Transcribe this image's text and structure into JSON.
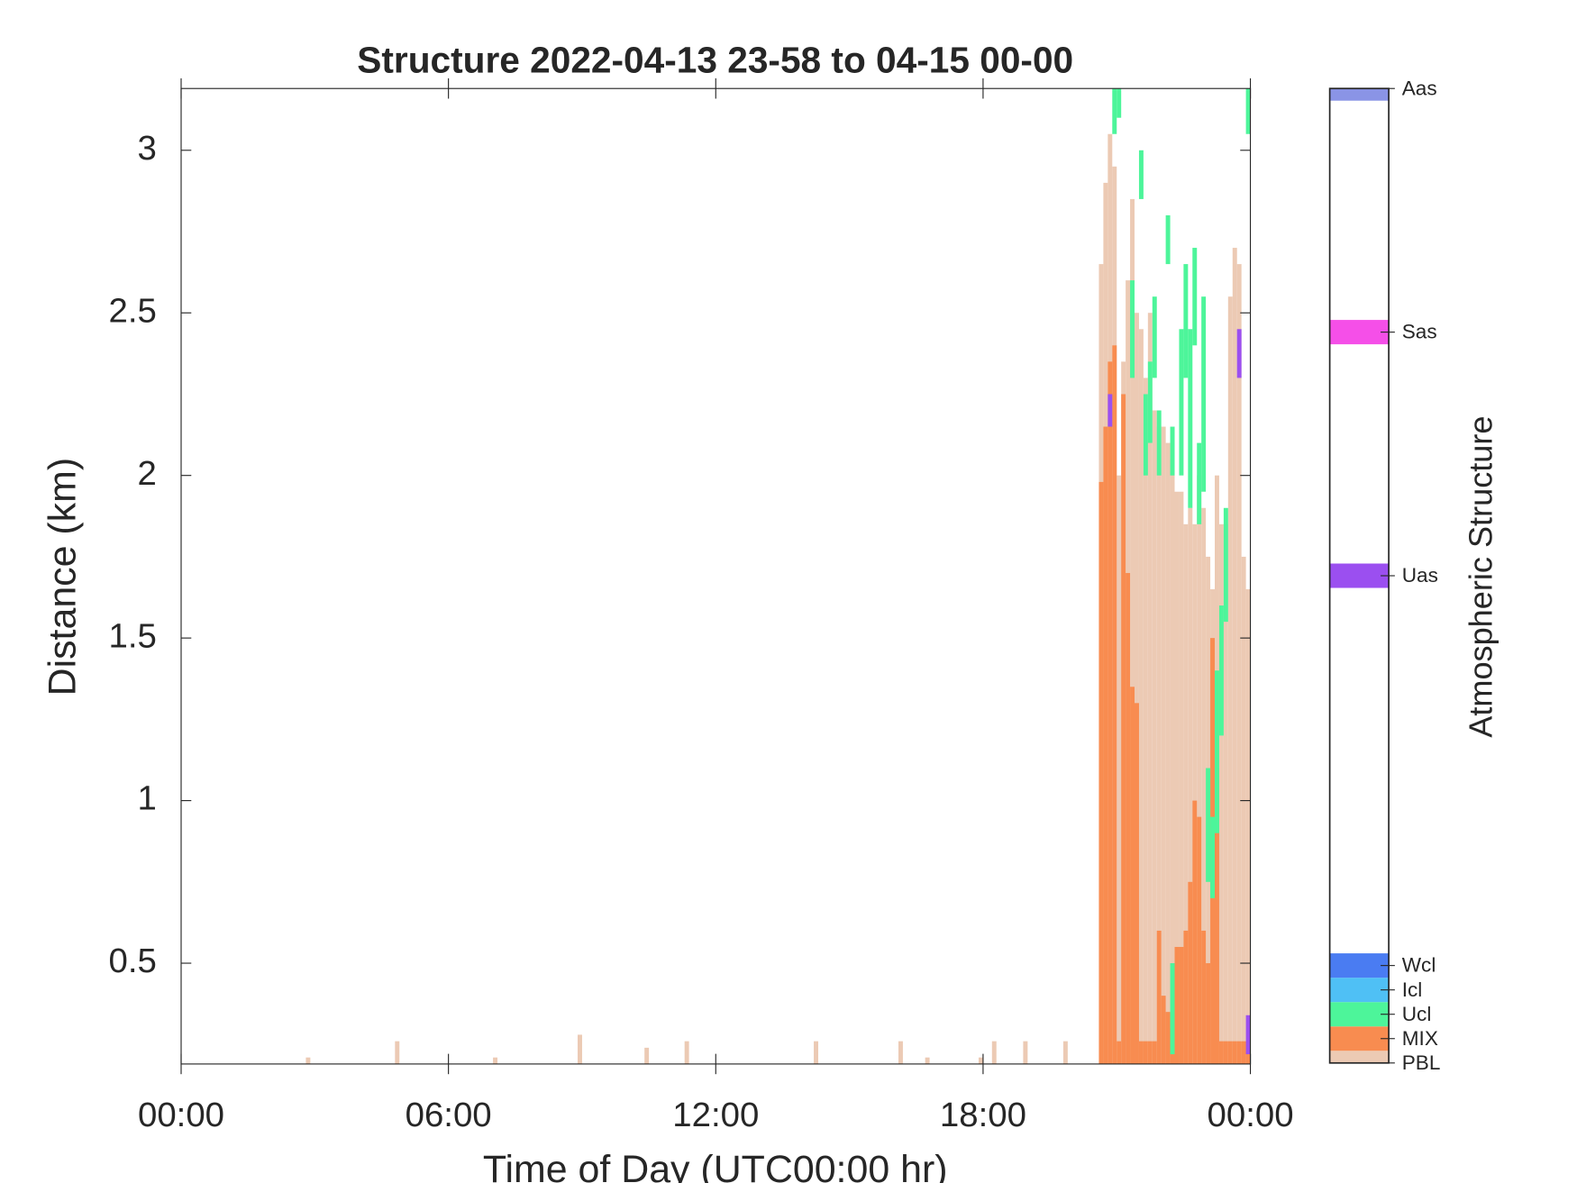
{
  "chart_data": {
    "type": "structure",
    "title": "Structure 2022-04-13 23-58 to 04-15 00-00",
    "x_label": "Time of Day (UTC00:00 hr)",
    "y_label": "Distance (km)",
    "xlim": [
      0,
      24
    ],
    "xticks": [
      {
        "value": 0,
        "label": "00:00"
      },
      {
        "value": 6,
        "label": "06:00"
      },
      {
        "value": 12,
        "label": "12:00"
      },
      {
        "value": 18,
        "label": "18:00"
      },
      {
        "value": 24,
        "label": "00:00"
      }
    ],
    "ylim": [
      0.19,
      3.19
    ],
    "yticks": [
      0.5,
      1,
      1.5,
      2,
      2.5,
      3
    ],
    "series": [
      {
        "name": "PBL",
        "color": "#eccab4",
        "x": [
          2.8,
          4.8,
          7.0,
          8.9,
          10.4,
          11.3,
          14.2,
          16.1,
          16.7,
          17.9,
          18.2,
          18.9,
          19.8,
          20.6,
          20.7,
          20.8,
          20.9,
          21.0,
          21.1,
          21.2,
          21.3,
          21.4,
          21.5,
          21.6,
          21.7,
          21.8,
          21.9,
          22.0,
          22.1,
          22.2,
          22.3,
          22.4,
          22.5,
          22.6,
          22.7,
          22.8,
          22.9,
          23.0,
          23.1,
          23.2,
          23.3,
          23.4,
          23.5,
          23.6,
          23.7,
          23.8,
          23.9
        ],
        "values": [
          0.21,
          0.26,
          0.21,
          0.28,
          0.24,
          0.26,
          0.26,
          0.26,
          0.21,
          0.21,
          0.26,
          0.26,
          0.26,
          2.65,
          2.9,
          3.05,
          2.95,
          2.0,
          2.35,
          2.6,
          2.85,
          2.5,
          2.45,
          2.3,
          2.5,
          2.2,
          2.15,
          2.15,
          2.1,
          2.05,
          1.95,
          1.95,
          1.85,
          1.9,
          1.85,
          2.0,
          1.9,
          1.75,
          1.65,
          2.0,
          1.85,
          1.85,
          2.55,
          2.7,
          2.65,
          1.75,
          1.65
        ]
      },
      {
        "name": "MIX",
        "color": "#f88c50",
        "x": [
          20.6,
          20.7,
          20.8,
          20.9,
          21.0,
          21.1,
          21.2,
          21.3,
          21.4,
          21.5,
          21.6,
          21.7,
          21.8,
          21.9,
          22.0,
          22.1,
          22.2,
          22.3,
          22.4,
          22.5,
          22.6,
          22.7,
          22.8,
          22.9,
          23.0,
          23.1,
          23.2,
          23.3,
          23.4,
          23.5,
          23.6,
          23.7,
          23.8,
          23.9
        ],
        "values": [
          1.98,
          2.15,
          2.35,
          2.4,
          0.26,
          2.25,
          1.7,
          1.35,
          1.3,
          0.26,
          0.26,
          0.26,
          0.26,
          0.6,
          0.4,
          0.35,
          0.3,
          0.55,
          0.55,
          0.6,
          0.75,
          1.0,
          0.95,
          0.6,
          0.5,
          1.5,
          1.1,
          0.26,
          0.26,
          0.26,
          0.26,
          0.26,
          0.26,
          0.26
        ]
      },
      {
        "name": "Ucl",
        "color": "#4df59a",
        "x": [
          20.9,
          21.0,
          21.3,
          21.5,
          21.6,
          21.7,
          21.8,
          21.9,
          22.1,
          22.2,
          22.2,
          22.4,
          22.5,
          22.6,
          22.7,
          22.8,
          22.9,
          23.0,
          23.1,
          23.2,
          23.3,
          23.4,
          23.9
        ],
        "low": [
          3.05,
          3.1,
          2.3,
          2.85,
          2.0,
          2.1,
          2.3,
          2.0,
          2.65,
          2.0,
          0.22,
          2.0,
          2.3,
          1.9,
          2.4,
          1.85,
          1.95,
          0.75,
          0.7,
          0.9,
          1.2,
          1.55,
          3.05
        ],
        "high": [
          3.19,
          3.19,
          2.6,
          3.0,
          2.25,
          2.35,
          2.55,
          2.2,
          2.8,
          2.15,
          0.5,
          2.45,
          2.65,
          2.45,
          2.7,
          2.1,
          2.55,
          1.1,
          0.95,
          1.4,
          1.6,
          1.9,
          3.19
        ]
      },
      {
        "name": "Uas",
        "color": "#9b4ff0",
        "x": [
          20.8,
          23.7,
          23.9
        ],
        "low": [
          2.15,
          2.3,
          0.22
        ],
        "high": [
          2.25,
          2.45,
          0.34
        ]
      }
    ],
    "colorbar": {
      "label": "Atmospheric Structure",
      "lim": [
        0,
        40
      ],
      "classes": [
        {
          "name": "PBL",
          "value": 0,
          "color": "#eccab4"
        },
        {
          "name": "MIX",
          "value": 1,
          "color": "#f88c50"
        },
        {
          "name": "Ucl",
          "value": 2,
          "color": "#4df59a"
        },
        {
          "name": "Icl",
          "value": 3,
          "color": "#4fc0f5"
        },
        {
          "name": "Wcl",
          "value": 4,
          "color": "#4a7cf2"
        },
        {
          "name": "Uas",
          "value": 20,
          "color": "#9b4ff0"
        },
        {
          "name": "Sas",
          "value": 30,
          "color": "#f54fe8"
        },
        {
          "name": "Aas",
          "value": 40,
          "color": "#8a94e6"
        }
      ]
    }
  }
}
